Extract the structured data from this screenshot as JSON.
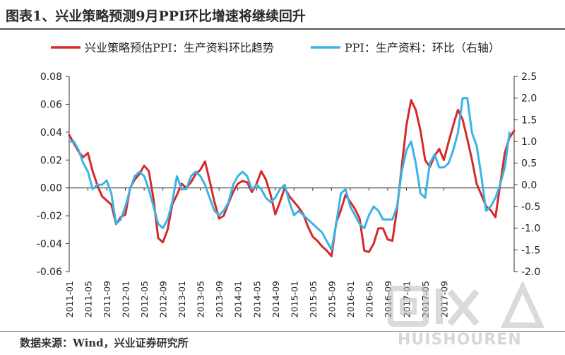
{
  "title": "图表1、兴业策略预测9月PPI环比增速将继续回升",
  "source": "数据来源：Wind，兴业证券研究所",
  "watermark": {
    "text": "HUISHOUREN"
  },
  "colors": {
    "red": "#d42a2a",
    "blue": "#3bb4e4",
    "axis": "#333333",
    "text": "#222222"
  },
  "chart_data": {
    "type": "line",
    "legend_position": "top",
    "grid": false,
    "y_left": {
      "min": -0.06,
      "max": 0.08,
      "ticks": [
        "0.08",
        "0.06",
        "0.04",
        "0.02",
        "0.00",
        "-0.02",
        "-0.04",
        "-0.06"
      ]
    },
    "y_right": {
      "min": -2.0,
      "max": 2.5,
      "ticks": [
        "2.5",
        "2.0",
        "1.5",
        "1.0",
        "0.5",
        "0.0",
        "-0.5",
        "-1.0",
        "-1.5",
        "-2.0"
      ]
    },
    "x_ticks": [
      "2011-01",
      "2011-05",
      "2011-09",
      "2012-01",
      "2012-05",
      "2012-09",
      "2013-01",
      "2013-05",
      "2013-09",
      "2014-01",
      "2014-05",
      "2014-09",
      "2015-01",
      "2015-05",
      "2015-09",
      "2016-01",
      "2016-05",
      "2016-09",
      "2017-01",
      "2017-05",
      "2017-09"
    ],
    "series": [
      {
        "name": "兴业策略预估PPI：生产资料环比趋势",
        "axis": "left",
        "color": "#d42a2a",
        "values": [
          0.038,
          0.032,
          0.026,
          0.022,
          0.025,
          0.012,
          0.002,
          -0.006,
          -0.009,
          -0.012,
          -0.026,
          -0.021,
          -0.019,
          0,
          0.006,
          0.01,
          0.016,
          0.012,
          -0.008,
          -0.036,
          -0.039,
          -0.03,
          -0.012,
          -0.005,
          0.003,
          0,
          0.004,
          0.01,
          0.013,
          0.019,
          0.005,
          -0.01,
          -0.022,
          -0.02,
          -0.011,
          -0.003,
          0.003,
          0.005,
          0.004,
          -0.003,
          0.003,
          0.012,
          0.006,
          -0.005,
          -0.019,
          -0.01,
          0,
          -0.006,
          -0.01,
          -0.014,
          -0.019,
          -0.028,
          -0.035,
          -0.038,
          -0.042,
          -0.045,
          -0.049,
          -0.025,
          -0.016,
          -0.005,
          -0.01,
          -0.015,
          -0.022,
          -0.045,
          -0.046,
          -0.04,
          -0.029,
          -0.029,
          -0.037,
          -0.038,
          -0.015,
          0.015,
          0.045,
          0.063,
          0.056,
          0.041,
          0.02,
          0.015,
          0.023,
          0.028,
          0.02,
          0.033,
          0.045,
          0.056,
          0.049,
          0.035,
          0.02,
          0.003,
          -0.005,
          -0.013,
          -0.016,
          -0.021,
          0.002,
          0.025,
          0.036,
          0.041
        ]
      },
      {
        "name": "PPI：生产资料：环比（右轴）",
        "axis": "right",
        "color": "#3bb4e4",
        "values": [
          1.0,
          1.0,
          0.8,
          0.5,
          0.3,
          -0.1,
          0,
          0,
          0.1,
          -0.2,
          -0.9,
          -0.8,
          -0.5,
          -0.1,
          0.2,
          0.3,
          0.2,
          -0.1,
          -0.5,
          -0.9,
          -1.0,
          -0.8,
          -0.4,
          0.2,
          -0.1,
          -0.1,
          0.2,
          0.3,
          0.2,
          0,
          -0.3,
          -0.6,
          -0.7,
          -0.6,
          -0.4,
          0,
          0.2,
          0.3,
          0.2,
          -0.1,
          0,
          -0.1,
          -0.3,
          -0.4,
          -0.3,
          -0.1,
          0,
          -0.4,
          -0.7,
          -0.6,
          -0.7,
          -0.8,
          -0.9,
          -1.0,
          -1.1,
          -1.3,
          -1.5,
          -0.9,
          -0.2,
          -0.1,
          -0.5,
          -0.7,
          -0.9,
          -1.0,
          -0.7,
          -0.5,
          -0.6,
          -0.8,
          -0.8,
          -0.8,
          -0.5,
          0.3,
          0.8,
          1.0,
          0.5,
          -0.2,
          -0.3,
          0.5,
          0.7,
          0.4,
          0.4,
          0.5,
          0.8,
          1.2,
          2.0,
          2.0,
          1.2,
          0.9,
          0.2,
          -0.6,
          -0.5,
          -0.3,
          0,
          0.4,
          1.2
        ]
      }
    ]
  }
}
